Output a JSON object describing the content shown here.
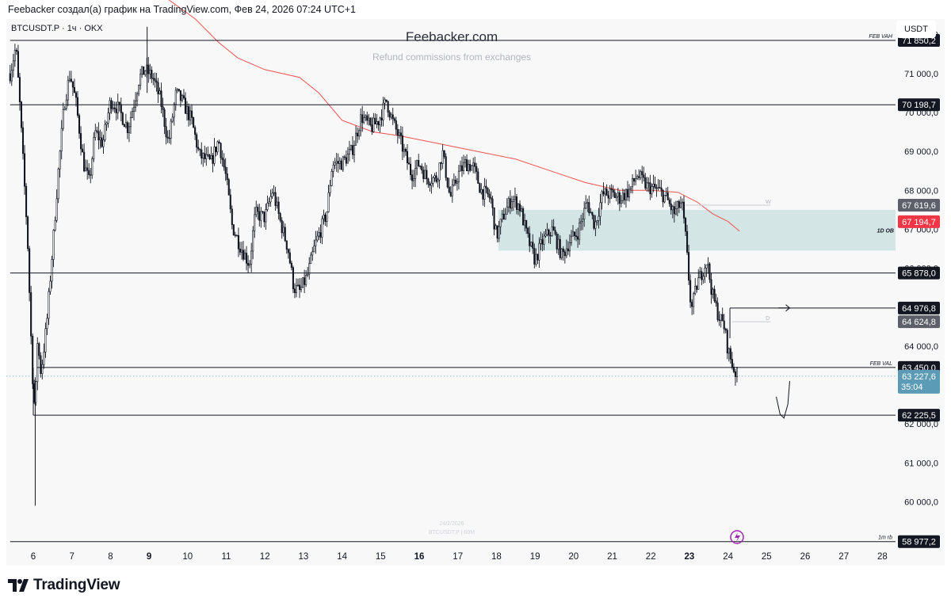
{
  "caption": "Feebacker создал(а) график на TradingView.com, Фев 24, 2026 07:24 UTC+1",
  "symbol_line": "BTCUSDT.P · 1ч · OKX",
  "watermark": {
    "title": "Feebacker.com",
    "subtitle": "Refund commissions from exchanges"
  },
  "currency_button": "USDT",
  "branding": {
    "logo_text": "TradingView"
  },
  "colors": {
    "candles": "#131722",
    "ma_line": "#ef5350",
    "order_block": "#d3e5e5",
    "price_label": "#5b9bb6",
    "ma_label": "#f23645"
  },
  "chart_data": {
    "type": "candlestick",
    "title": "",
    "symbol": "BTCUSDT.P",
    "timeframe": "1ч",
    "exchange": "OKX",
    "currency": "USDT",
    "ylim": [
      58850,
      72400
    ],
    "y_ticks": [
      60000,
      61000,
      62000,
      63000,
      64000,
      65000,
      66000,
      67000,
      68000,
      69000,
      70000,
      71000,
      72000
    ],
    "y_tick_labels": [
      "60 000,0",
      "61 000,0",
      "62 000,0",
      "63 000,0",
      "64 000,0",
      "65 000,0",
      "66 000,0",
      "67 000,0",
      "68 000,0",
      "69 000,0",
      "70 000,0",
      "71 000,0",
      "72 000,0"
    ],
    "x_ticks": [
      {
        "label": "6",
        "day": 6,
        "bold": false
      },
      {
        "label": "7",
        "day": 7,
        "bold": false
      },
      {
        "label": "8",
        "day": 8,
        "bold": false
      },
      {
        "label": "9",
        "day": 9,
        "bold": true
      },
      {
        "label": "10",
        "day": 10,
        "bold": false
      },
      {
        "label": "11",
        "day": 11,
        "bold": false
      },
      {
        "label": "12",
        "day": 12,
        "bold": false
      },
      {
        "label": "13",
        "day": 13,
        "bold": false
      },
      {
        "label": "14",
        "day": 14,
        "bold": false
      },
      {
        "label": "15",
        "day": 15,
        "bold": false
      },
      {
        "label": "16",
        "day": 16,
        "bold": true
      },
      {
        "label": "17",
        "day": 17,
        "bold": false
      },
      {
        "label": "18",
        "day": 18,
        "bold": false
      },
      {
        "label": "19",
        "day": 19,
        "bold": false
      },
      {
        "label": "20",
        "day": 20,
        "bold": false
      },
      {
        "label": "21",
        "day": 21,
        "bold": false
      },
      {
        "label": "22",
        "day": 22,
        "bold": false
      },
      {
        "label": "23",
        "day": 23,
        "bold": true
      },
      {
        "label": "24",
        "day": 24,
        "bold": false
      },
      {
        "label": "25",
        "day": 25,
        "bold": false
      },
      {
        "label": "26",
        "day": 26,
        "bold": false
      },
      {
        "label": "27",
        "day": 27,
        "bold": false
      },
      {
        "label": "28",
        "day": 28,
        "bold": false
      }
    ],
    "price_path": [
      [
        5.4,
        71000
      ],
      [
        5.55,
        71700
      ],
      [
        5.65,
        70200
      ],
      [
        5.75,
        68500
      ],
      [
        5.85,
        66800
      ],
      [
        5.95,
        64000
      ],
      [
        6.0,
        62800
      ],
      [
        6.05,
        62300
      ],
      [
        6.1,
        64200
      ],
      [
        6.2,
        63300
      ],
      [
        6.35,
        64600
      ],
      [
        6.5,
        66500
      ],
      [
        6.65,
        68500
      ],
      [
        6.8,
        70200
      ],
      [
        6.95,
        71000
      ],
      [
        7.1,
        70300
      ],
      [
        7.3,
        68700
      ],
      [
        7.45,
        68200
      ],
      [
        7.6,
        69500
      ],
      [
        7.8,
        69200
      ],
      [
        8.0,
        70300
      ],
      [
        8.2,
        70100
      ],
      [
        8.45,
        69600
      ],
      [
        8.6,
        70200
      ],
      [
        8.75,
        70900
      ],
      [
        8.9,
        71100
      ],
      [
        9.1,
        70900
      ],
      [
        9.3,
        70300
      ],
      [
        9.5,
        69200
      ],
      [
        9.7,
        70500
      ],
      [
        9.85,
        70300
      ],
      [
        10.1,
        69800
      ],
      [
        10.3,
        68900
      ],
      [
        10.6,
        68700
      ],
      [
        10.8,
        69300
      ],
      [
        11.0,
        68300
      ],
      [
        11.15,
        67100
      ],
      [
        11.35,
        66600
      ],
      [
        11.6,
        66100
      ],
      [
        11.75,
        67400
      ],
      [
        12.0,
        67300
      ],
      [
        12.2,
        68000
      ],
      [
        12.4,
        67200
      ],
      [
        12.6,
        66500
      ],
      [
        12.75,
        65500
      ],
      [
        12.9,
        65400
      ],
      [
        13.1,
        65800
      ],
      [
        13.3,
        66600
      ],
      [
        13.6,
        67400
      ],
      [
        13.75,
        68700
      ],
      [
        14.0,
        68700
      ],
      [
        14.25,
        69000
      ],
      [
        14.5,
        69900
      ],
      [
        14.75,
        69600
      ],
      [
        14.95,
        69800
      ],
      [
        15.15,
        70300
      ],
      [
        15.3,
        69800
      ],
      [
        15.5,
        69300
      ],
      [
        15.8,
        68400
      ],
      [
        16.0,
        68700
      ],
      [
        16.2,
        68300
      ],
      [
        16.45,
        68300
      ],
      [
        16.6,
        69000
      ],
      [
        16.8,
        67800
      ],
      [
        17.0,
        68400
      ],
      [
        17.2,
        68700
      ],
      [
        17.4,
        68600
      ],
      [
        17.6,
        68000
      ],
      [
        17.85,
        67800
      ],
      [
        18.0,
        66800
      ],
      [
        18.2,
        67400
      ],
      [
        18.4,
        67800
      ],
      [
        18.6,
        67600
      ],
      [
        18.8,
        66800
      ],
      [
        19.0,
        66200
      ],
      [
        19.2,
        66700
      ],
      [
        19.45,
        67000
      ],
      [
        19.7,
        66300
      ],
      [
        19.9,
        66700
      ],
      [
        20.1,
        66900
      ],
      [
        20.35,
        67700
      ],
      [
        20.55,
        67100
      ],
      [
        20.75,
        67900
      ],
      [
        21.0,
        67900
      ],
      [
        21.2,
        67800
      ],
      [
        21.45,
        68000
      ],
      [
        21.65,
        68400
      ],
      [
        21.9,
        68100
      ],
      [
        22.2,
        68000
      ],
      [
        22.4,
        67800
      ],
      [
        22.6,
        67400
      ],
      [
        22.8,
        67700
      ],
      [
        22.9,
        66800
      ],
      [
        23.05,
        64900
      ],
      [
        23.2,
        65600
      ],
      [
        23.45,
        66200
      ],
      [
        23.6,
        65300
      ],
      [
        23.75,
        64800
      ],
      [
        23.9,
        64500
      ],
      [
        24.0,
        63900
      ],
      [
        24.15,
        63400
      ],
      [
        24.25,
        63227
      ]
    ],
    "moving_average": [
      [
        8.8,
        73400
      ],
      [
        9.5,
        72900
      ],
      [
        10.2,
        72400
      ],
      [
        10.8,
        71800
      ],
      [
        11.3,
        71400
      ],
      [
        12.0,
        71100
      ],
      [
        12.9,
        70900
      ],
      [
        13.4,
        70500
      ],
      [
        14.0,
        69800
      ],
      [
        14.8,
        69500
      ],
      [
        15.5,
        69400
      ],
      [
        16.5,
        69200
      ],
      [
        17.5,
        69000
      ],
      [
        18.5,
        68800
      ],
      [
        19.4,
        68500
      ],
      [
        20.3,
        68200
      ],
      [
        21.2,
        68000
      ],
      [
        22.0,
        68000
      ],
      [
        22.7,
        67950
      ],
      [
        23.2,
        67700
      ],
      [
        23.6,
        67400
      ],
      [
        24.0,
        67200
      ],
      [
        24.3,
        66950
      ]
    ],
    "horizontal_levels": [
      {
        "name": "feb-vah",
        "price": 71850.2,
        "label": "71 850,2",
        "note": "FEB VAH",
        "from_day": 5.4
      },
      {
        "name": "level-70198",
        "price": 70198.7,
        "label": "70 198,7",
        "note": "",
        "from_day": 5.4
      },
      {
        "name": "level-65878",
        "price": 65878.0,
        "label": "65 878,0",
        "note": "",
        "from_day": 5.4
      },
      {
        "name": "feb-val",
        "price": 63450.0,
        "label": "63 450,0",
        "note": "FEB VAL",
        "from_day": 6.1
      },
      {
        "name": "level-62225",
        "price": 62225.5,
        "label": "62 225,5",
        "note": "",
        "from_day": 6.0
      },
      {
        "name": "level-1m-rb",
        "price": 58977.2,
        "label": "58 977,2",
        "note": "1m rb",
        "from_day": 5.4
      }
    ],
    "order_block": {
      "label": "1D OB",
      "top": 67500,
      "bottom": 66450,
      "from_day": 18.05
    },
    "short_levels": [
      {
        "name": "level-w",
        "price": 67619.6,
        "label": "67 619,6",
        "note": "W",
        "from_day": 22.9,
        "to_day": 25.1
      },
      {
        "name": "level-d",
        "price": 64624.8,
        "label": "64 624,8",
        "note": "D",
        "from_day": 24.1,
        "to_day": 25.1
      },
      {
        "name": "level-64976",
        "price": 64976.8,
        "label": "64 976,8",
        "note": "",
        "from_day": 24.05,
        "to_day": 30
      }
    ],
    "price_labels": [
      {
        "name": "last-price-label",
        "price": 63227.6,
        "label": "63 227,6",
        "countdown": "35:04"
      },
      {
        "name": "ma-price-label",
        "price": 67194.7,
        "label": "67 194,7"
      }
    ],
    "projection": [
      [
        25.25,
        62700
      ],
      [
        25.35,
        62250
      ],
      [
        25.45,
        62150
      ],
      [
        25.55,
        62500
      ],
      [
        25.6,
        63100
      ]
    ],
    "projection_arrow": [
      [
        25.3,
        64980
      ],
      [
        25.6,
        64980
      ]
    ],
    "spike_low": {
      "day": 6.05,
      "price": 59900
    },
    "spike_high": {
      "day": 8.95,
      "price": 72200
    },
    "faint_bottom_text": [
      "24/2/2026",
      "BTCUSDT.P | 60M"
    ]
  }
}
